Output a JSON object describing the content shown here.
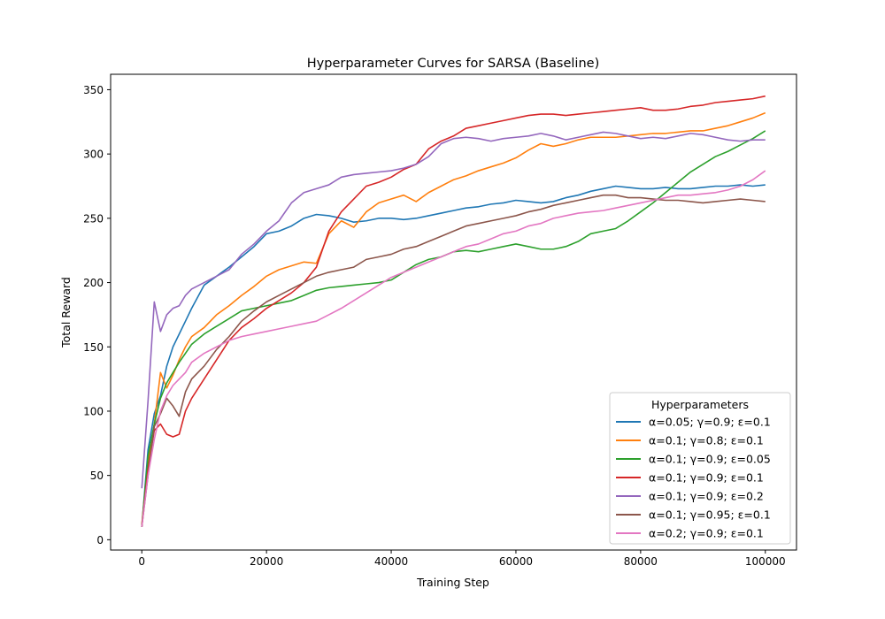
{
  "chart_data": {
    "type": "line",
    "title": "Hyperparameter Curves for SARSA (Baseline)",
    "xlabel": "Training Step",
    "ylabel": "Total Reward",
    "xlim": [
      -5000,
      105000
    ],
    "ylim": [
      -8,
      362
    ],
    "xticks": [
      0,
      20000,
      40000,
      60000,
      80000,
      100000
    ],
    "xtick_labels": [
      "0",
      "20000",
      "40000",
      "60000",
      "80000",
      "100000"
    ],
    "yticks": [
      0,
      50,
      100,
      150,
      200,
      250,
      300,
      350
    ],
    "ytick_labels": [
      "0",
      "50",
      "100",
      "150",
      "200",
      "250",
      "300",
      "350"
    ],
    "grid": false,
    "legend": {
      "title": "Hyperparameters",
      "position": "lower-right"
    },
    "x": [
      0,
      1000,
      2000,
      3000,
      4000,
      5000,
      6000,
      7000,
      8000,
      10000,
      12000,
      14000,
      16000,
      18000,
      20000,
      22000,
      24000,
      26000,
      28000,
      30000,
      32000,
      34000,
      36000,
      38000,
      40000,
      42000,
      44000,
      46000,
      48000,
      50000,
      52000,
      54000,
      56000,
      58000,
      60000,
      62000,
      64000,
      66000,
      68000,
      70000,
      72000,
      74000,
      76000,
      78000,
      80000,
      82000,
      84000,
      86000,
      88000,
      90000,
      92000,
      94000,
      96000,
      98000,
      100000
    ],
    "series": [
      {
        "name": "α=0.05; γ=0.9; ε=0.1",
        "color": "#1f77b4",
        "values": [
          10,
          70,
          98,
          112,
          135,
          150,
          160,
          170,
          180,
          198,
          205,
          212,
          220,
          228,
          238,
          240,
          244,
          250,
          253,
          252,
          250,
          247,
          248,
          250,
          250,
          249,
          250,
          252,
          254,
          256,
          258,
          259,
          261,
          262,
          264,
          263,
          262,
          263,
          266,
          268,
          271,
          273,
          275,
          274,
          273,
          273,
          274,
          273,
          273,
          274,
          275,
          275,
          276,
          275,
          276
        ]
      },
      {
        "name": "α=0.1; γ=0.8; ε=0.1",
        "color": "#ff7f0e",
        "values": [
          12,
          60,
          90,
          130,
          118,
          128,
          140,
          150,
          158,
          165,
          175,
          182,
          190,
          197,
          205,
          210,
          213,
          216,
          215,
          238,
          248,
          243,
          255,
          262,
          265,
          268,
          263,
          270,
          275,
          280,
          283,
          287,
          290,
          293,
          297,
          303,
          308,
          306,
          308,
          311,
          313,
          313,
          313,
          314,
          315,
          316,
          316,
          317,
          318,
          318,
          320,
          322,
          325,
          328,
          332
        ]
      },
      {
        "name": "α=0.1; γ=0.9; ε=0.05",
        "color": "#2ca02c",
        "values": [
          10,
          65,
          90,
          110,
          122,
          130,
          138,
          145,
          152,
          160,
          166,
          172,
          178,
          180,
          182,
          184,
          186,
          190,
          194,
          196,
          197,
          198,
          199,
          200,
          202,
          208,
          214,
          218,
          220,
          224,
          225,
          224,
          226,
          228,
          230,
          228,
          226,
          226,
          228,
          232,
          238,
          240,
          242,
          248,
          255,
          262,
          270,
          278,
          286,
          292,
          298,
          302,
          307,
          312,
          318
        ]
      },
      {
        "name": "α=0.1; γ=0.9; ε=0.1",
        "color": "#d62728",
        "values": [
          10,
          55,
          85,
          90,
          82,
          80,
          82,
          100,
          110,
          125,
          140,
          155,
          165,
          172,
          180,
          186,
          192,
          200,
          212,
          240,
          255,
          265,
          275,
          278,
          282,
          288,
          292,
          304,
          310,
          314,
          320,
          322,
          324,
          326,
          328,
          330,
          331,
          331,
          330,
          331,
          332,
          333,
          334,
          335,
          336,
          334,
          334,
          335,
          337,
          338,
          340,
          341,
          342,
          343,
          345
        ]
      },
      {
        "name": "α=0.1; γ=0.9; ε=0.2",
        "color": "#9467bd",
        "values": [
          40,
          108,
          185,
          162,
          175,
          180,
          182,
          190,
          195,
          200,
          205,
          210,
          222,
          230,
          240,
          248,
          262,
          270,
          273,
          276,
          282,
          284,
          285,
          286,
          287,
          289,
          292,
          298,
          308,
          312,
          313,
          312,
          310,
          312,
          313,
          314,
          316,
          314,
          311,
          313,
          315,
          317,
          316,
          314,
          312,
          313,
          312,
          314,
          316,
          315,
          313,
          311,
          310,
          311,
          311
        ]
      },
      {
        "name": "α=0.1; γ=0.95; ε=0.1",
        "color": "#8c564b",
        "values": [
          10,
          50,
          88,
          98,
          110,
          104,
          96,
          115,
          125,
          135,
          148,
          158,
          170,
          178,
          185,
          190,
          195,
          200,
          205,
          208,
          210,
          212,
          218,
          220,
          222,
          226,
          228,
          232,
          236,
          240,
          244,
          246,
          248,
          250,
          252,
          255,
          257,
          260,
          262,
          264,
          266,
          268,
          268,
          266,
          266,
          265,
          264,
          264,
          263,
          262,
          263,
          264,
          265,
          264,
          263
        ]
      },
      {
        "name": "α=0.2; γ=0.9; ε=0.1",
        "color": "#e377c2",
        "values": [
          10,
          50,
          78,
          100,
          112,
          120,
          125,
          130,
          138,
          145,
          150,
          155,
          158,
          160,
          162,
          164,
          166,
          168,
          170,
          175,
          180,
          186,
          192,
          198,
          204,
          208,
          212,
          216,
          220,
          224,
          228,
          230,
          234,
          238,
          240,
          244,
          246,
          250,
          252,
          254,
          255,
          256,
          258,
          260,
          262,
          264,
          266,
          268,
          268,
          269,
          270,
          272,
          275,
          280,
          287
        ]
      }
    ]
  }
}
